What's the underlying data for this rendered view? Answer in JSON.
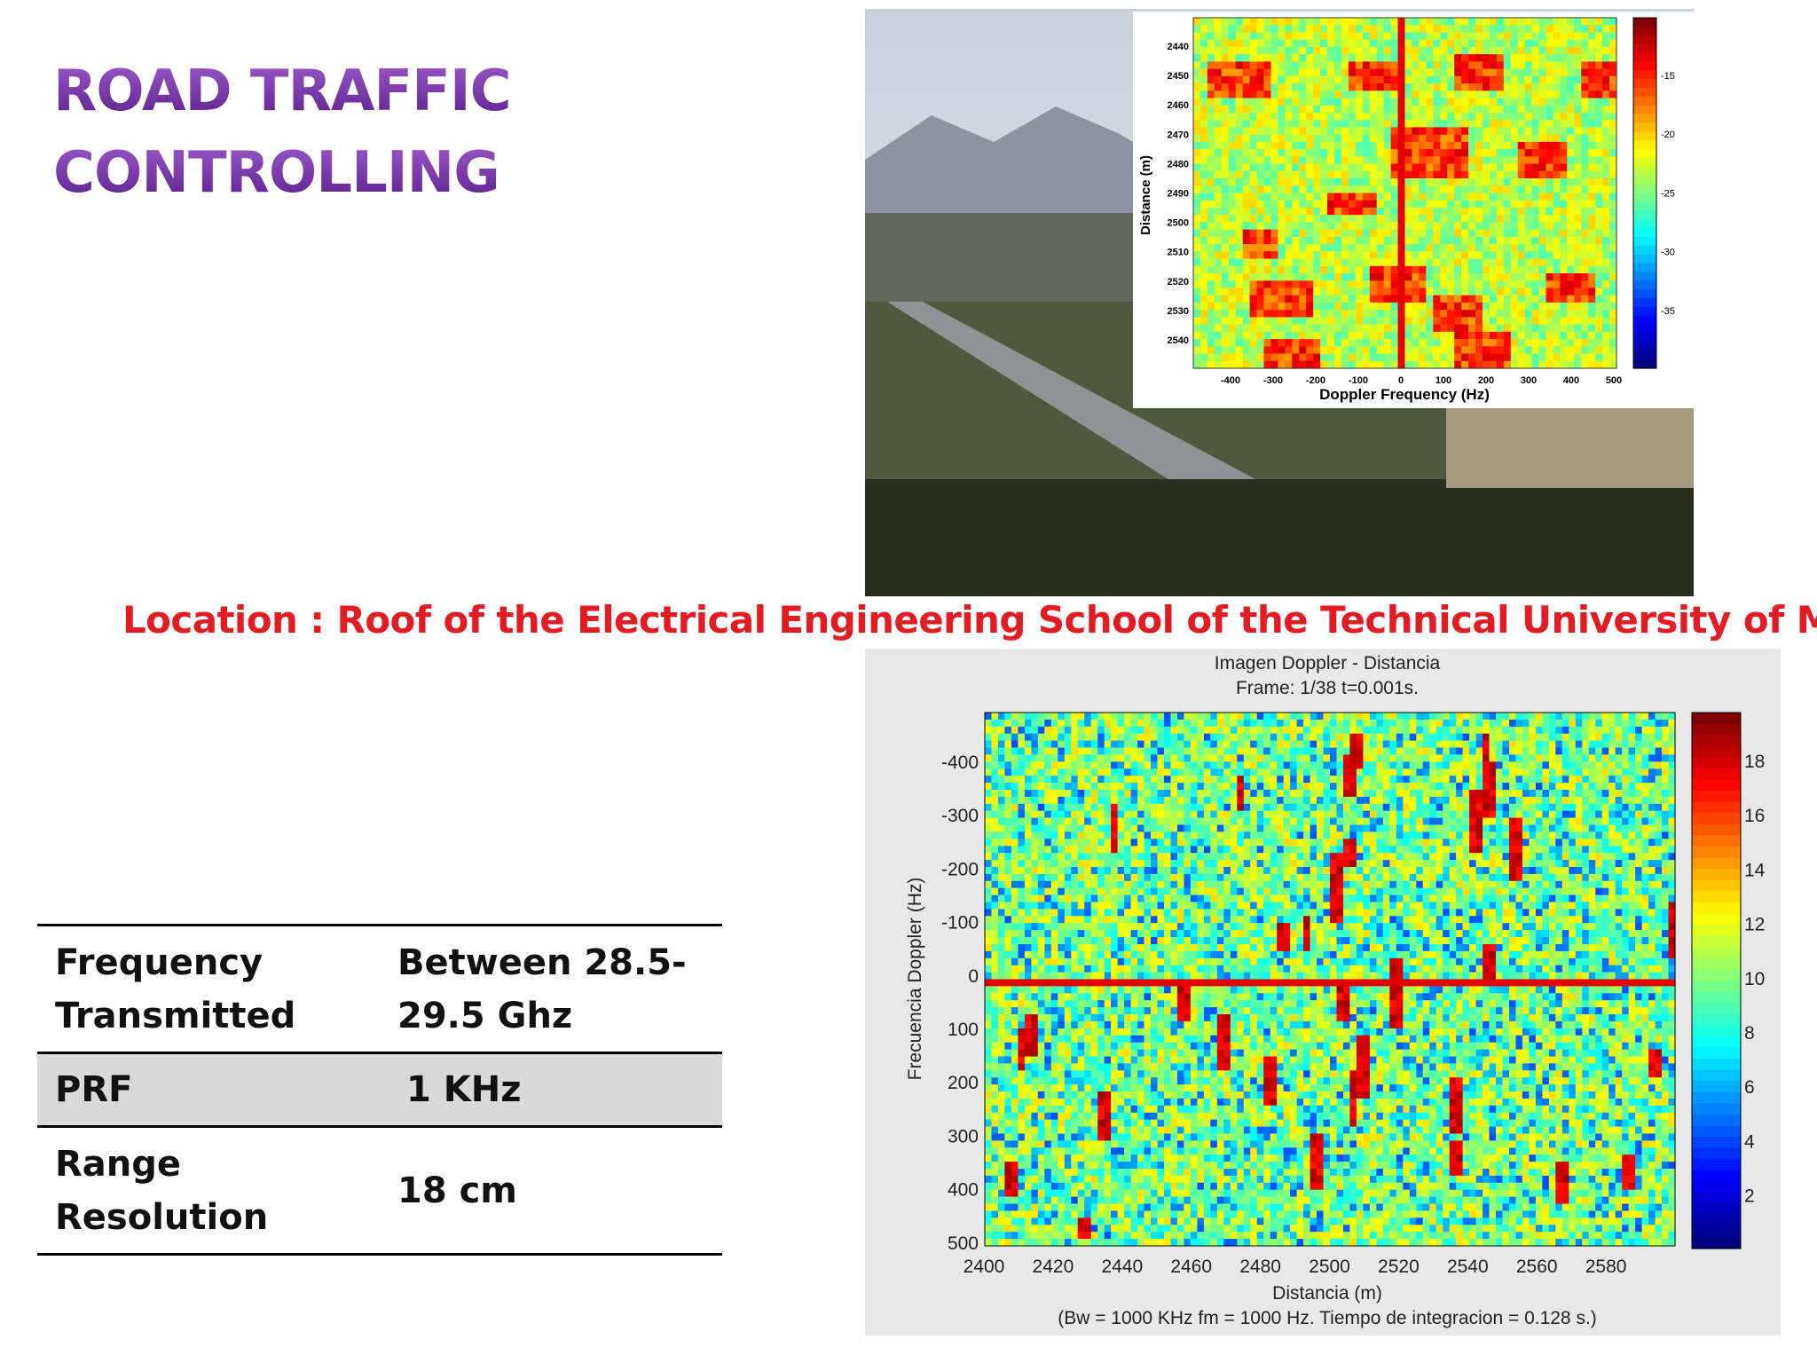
{
  "header": {
    "title_line1": "ROAD TRAFFIC",
    "title_line2": "CONTROLLING"
  },
  "location": "Location : Roof of the Electrical Engineering School of the Technical University of Madrid",
  "table": {
    "rows": [
      [
        "Frequency Transmitted",
        "Between 28.5-29.5 Ghz"
      ],
      [
        "PRF",
        "1 KHz"
      ],
      [
        "Range Resolution",
        "18 cm"
      ]
    ]
  },
  "figure_top": {
    "y_label": "Distance (m)",
    "x_label": "Doppler Frequency (Hz)",
    "yticks": [
      "2440",
      "2450",
      "2460",
      "2470",
      "2480",
      "2490",
      "2500",
      "2510",
      "2520",
      "2530",
      "2540"
    ],
    "xticks": [
      "-400",
      "-300",
      "-200",
      "-100",
      "0",
      "100",
      "200",
      "300",
      "400",
      "500"
    ],
    "colorbar_ticks": [
      "-15",
      "-20",
      "-25",
      "-30",
      "-35"
    ]
  },
  "figure_bottom": {
    "title": "Imagen Doppler - Distancia",
    "subtitle": "Frame: 1/38    t=0.001s.",
    "y_label": "Frecuencia Doppler (Hz)",
    "x_label": "Distancia (m)",
    "caption": "(Bw = 1000 KHz  fm = 1000 Hz. Tiempo de integracion = 0.128 s.)",
    "yticks": [
      "-400",
      "-300",
      "-200",
      "-100",
      "0",
      "100",
      "200",
      "300",
      "400",
      "500"
    ],
    "xticks": [
      "2400",
      "2420",
      "2440",
      "2460",
      "2480",
      "2500",
      "2520",
      "2540",
      "2560",
      "2580"
    ],
    "colorbar_ticks": [
      "18",
      "16",
      "14",
      "12",
      "10",
      "8",
      "6",
      "4",
      "2"
    ]
  }
}
